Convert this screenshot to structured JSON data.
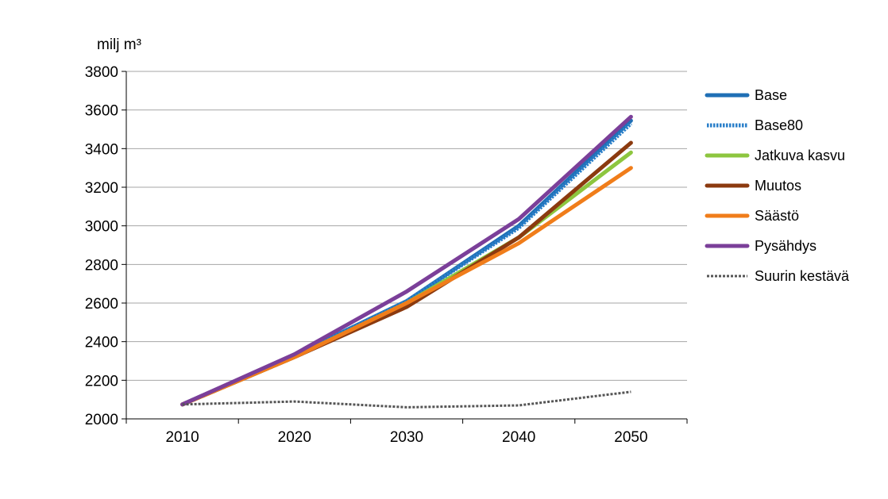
{
  "chart_data": {
    "type": "line",
    "ylabel": "milj m³",
    "x": [
      "2010",
      "2020",
      "2030",
      "2040",
      "2050"
    ],
    "ylim": [
      2000,
      3800
    ],
    "yticks": [
      "2000",
      "2200",
      "2400",
      "2600",
      "2800",
      "3000",
      "3200",
      "3400",
      "3600",
      "3800"
    ],
    "grid": "horizontal",
    "legend_position": "right",
    "series": [
      {
        "name": "Base",
        "values": [
          2075,
          2330,
          2610,
          3000,
          3545
        ],
        "color": "#1f6fb5",
        "dash": "solid"
      },
      {
        "name": "Base80",
        "values": [
          2075,
          2330,
          2610,
          2990,
          3530
        ],
        "color": "#2a7fc9",
        "dash": "dotted"
      },
      {
        "name": "Jatkuva kasvu",
        "values": [
          2075,
          2320,
          2600,
          2940,
          3380
        ],
        "color": "#8dc63f",
        "dash": "solid"
      },
      {
        "name": "Muutos",
        "values": [
          2075,
          2320,
          2580,
          2940,
          3430
        ],
        "color": "#8b3a0f",
        "dash": "solid"
      },
      {
        "name": "Säästö",
        "values": [
          2075,
          2320,
          2600,
          2910,
          3300
        ],
        "color": "#f07d1a",
        "dash": "solid"
      },
      {
        "name": "Pysähdys",
        "values": [
          2075,
          2335,
          2660,
          3035,
          3565
        ],
        "color": "#7b3f99",
        "dash": "solid"
      },
      {
        "name": "Suurin kestävä",
        "values": [
          2075,
          2090,
          2060,
          2070,
          2140
        ],
        "color": "#555555",
        "dash": "dotted-thin"
      }
    ]
  }
}
